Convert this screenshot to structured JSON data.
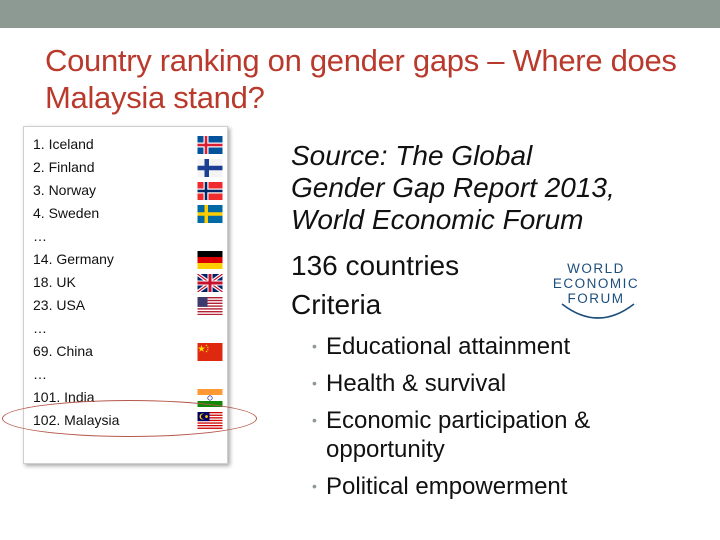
{
  "slide": {
    "title": "Country ranking on gender gaps – Where does Malaysia stand?"
  },
  "ranking": [
    {
      "label": "1. Iceland",
      "flag": "iceland-flag-icon"
    },
    {
      "label": "2. Finland",
      "flag": "finland-flag-icon"
    },
    {
      "label": "3. Norway",
      "flag": "norway-flag-icon"
    },
    {
      "label": "4. Sweden",
      "flag": "sweden-flag-icon"
    },
    {
      "label": "…",
      "flag": ""
    },
    {
      "label": "14. Germany",
      "flag": "germany-flag-icon"
    },
    {
      "label": "18. UK",
      "flag": "uk-flag-icon"
    },
    {
      "label": "23. USA",
      "flag": "usa-flag-icon"
    },
    {
      "label": "…",
      "flag": ""
    },
    {
      "label": "69. China",
      "flag": "china-flag-icon"
    },
    {
      "label": "…",
      "flag": ""
    },
    {
      "label": "101. India",
      "flag": "india-flag-icon"
    },
    {
      "label": "102. Malaysia",
      "flag": "malaysia-flag-icon"
    }
  ],
  "source": {
    "lines": [
      "Source: The Global",
      "Gender Gap Report 2013,",
      "World Economic Forum"
    ]
  },
  "countries_text": "136 countries",
  "criteria_heading": "Criteria",
  "criteria": [
    "Educational attainment",
    "Health & survival",
    "Economic participation & opportunity",
    "Political empowerment"
  ],
  "logo": {
    "lines": [
      "WORLD",
      "ECONOMIC",
      "FORUM"
    ],
    "color": "#1d4f7c"
  },
  "colors": {
    "title": "#b93a2c",
    "topbar": "#8c9a93",
    "highlight": "#b5584a"
  }
}
